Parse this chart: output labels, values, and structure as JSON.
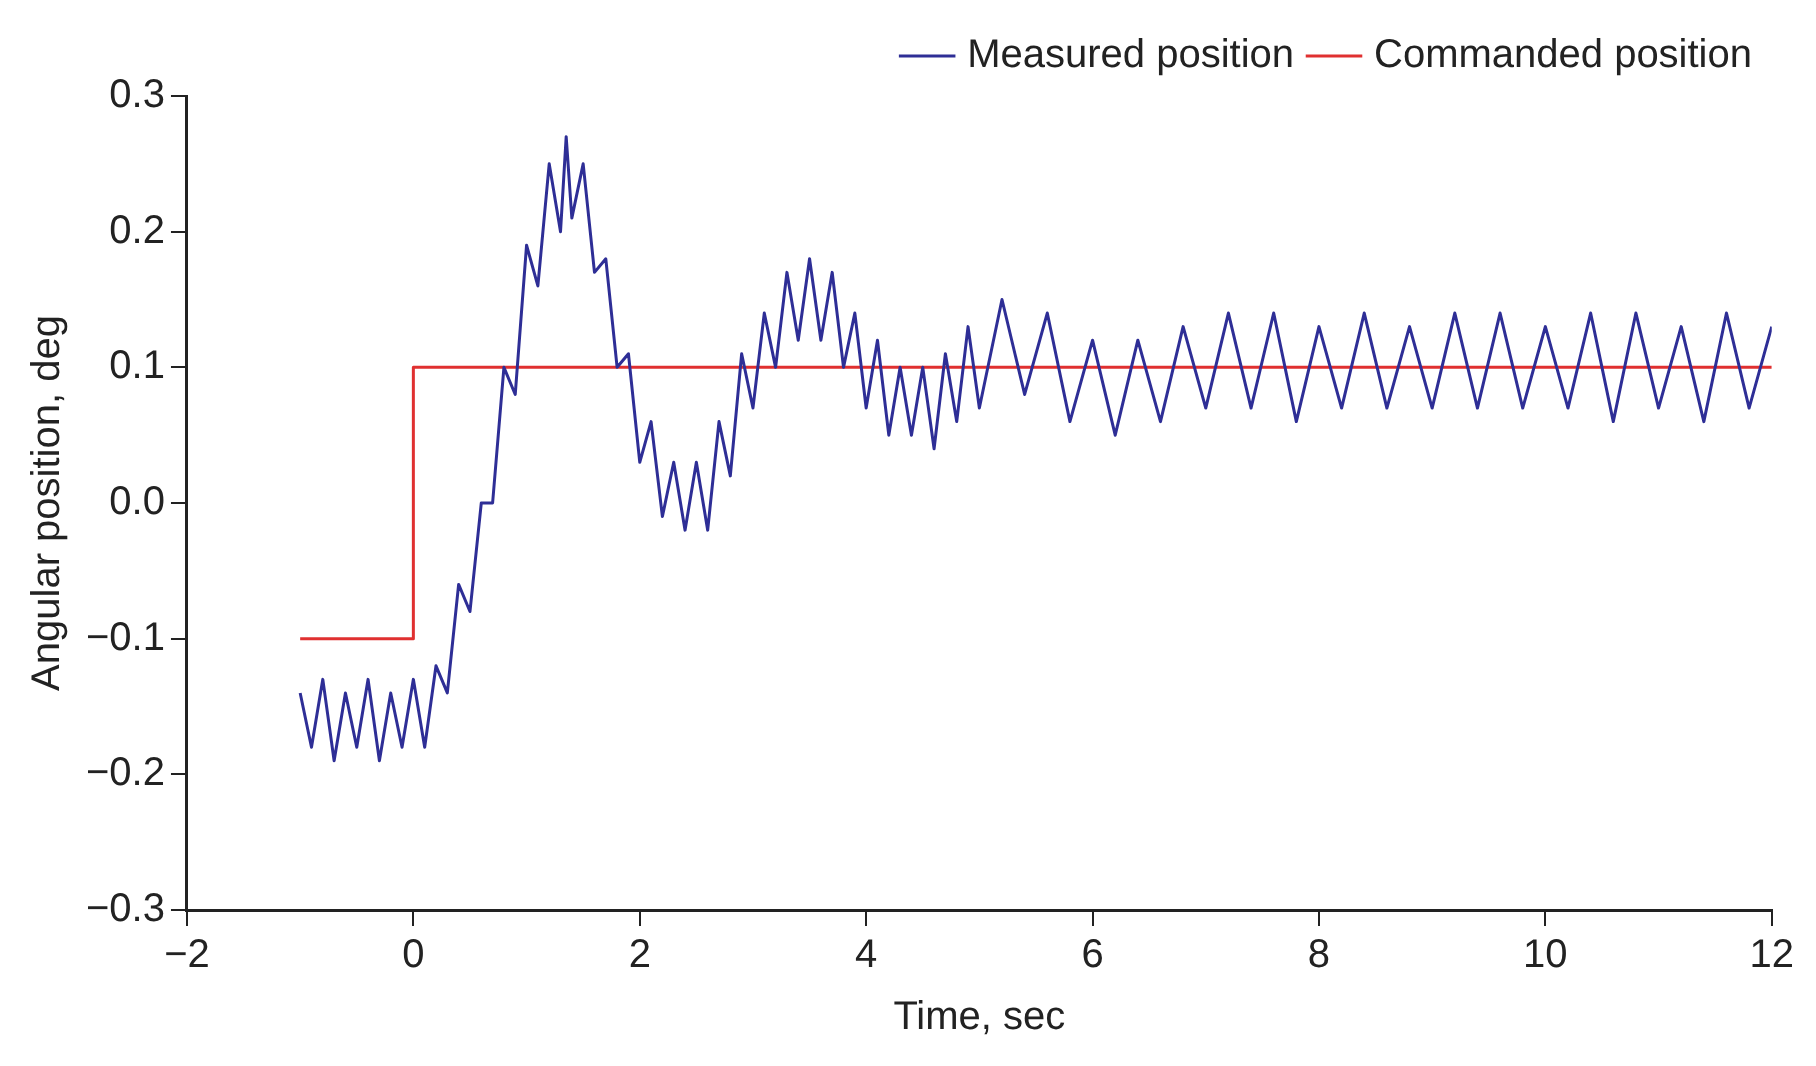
{
  "chart_data": {
    "type": "line",
    "xlabel": "Time, sec",
    "ylabel": "Angular position, deg",
    "xlim": [
      -2,
      12
    ],
    "xticks": [
      {
        "value": -2,
        "label": "−2"
      },
      0,
      2,
      4,
      6,
      8,
      10,
      12
    ],
    "ylim": [
      -0.3,
      0.3
    ],
    "yticks": [
      {
        "value": -0.3,
        "label": "−0.3"
      },
      {
        "value": -0.2,
        "label": "−0.2"
      },
      {
        "value": -0.1,
        "label": "−0.1"
      },
      {
        "value": 0,
        "label": "0.0"
      },
      {
        "value": 0.1,
        "label": "0.1"
      },
      {
        "value": 0.2,
        "label": "0.2"
      },
      {
        "value": 0.3,
        "label": "0.3"
      }
    ],
    "grid": false,
    "legend": "top right",
    "marker": "none",
    "line_style": "solid",
    "series": [
      {
        "name": "Measured position",
        "color": "#2e2e96",
        "x": [
          -1.0,
          -0.9,
          -0.8,
          -0.7,
          -0.6,
          -0.5,
          -0.4,
          -0.3,
          -0.2,
          -0.1,
          0.0,
          0.1,
          0.2,
          0.3,
          0.4,
          0.5,
          0.6,
          0.7,
          0.8,
          0.9,
          1.0,
          1.1,
          1.2,
          1.3,
          1.35,
          1.4,
          1.5,
          1.6,
          1.7,
          1.8,
          1.9,
          2.0,
          2.1,
          2.2,
          2.3,
          2.4,
          2.5,
          2.6,
          2.7,
          2.8,
          2.9,
          3.0,
          3.1,
          3.2,
          3.3,
          3.4,
          3.5,
          3.6,
          3.7,
          3.8,
          3.9,
          4.0,
          4.1,
          4.2,
          4.3,
          4.4,
          4.5,
          4.6,
          4.7,
          4.8,
          4.9,
          5.0,
          5.2,
          5.4,
          5.6,
          5.8,
          6.0,
          6.2,
          6.4,
          6.6,
          6.8,
          7.0,
          7.2,
          7.4,
          7.6,
          7.8,
          8.0,
          8.2,
          8.4,
          8.6,
          8.8,
          9.0,
          9.2,
          9.4,
          9.6,
          9.8,
          10.0,
          10.2,
          10.4,
          10.6,
          10.8,
          11.0,
          11.2,
          11.4,
          11.6,
          11.8,
          12.0
        ],
        "values": [
          -0.14,
          -0.18,
          -0.13,
          -0.19,
          -0.14,
          -0.18,
          -0.13,
          -0.19,
          -0.14,
          -0.18,
          -0.13,
          -0.18,
          -0.12,
          -0.14,
          -0.06,
          -0.08,
          0.0,
          0.0,
          0.1,
          0.08,
          0.19,
          0.16,
          0.25,
          0.2,
          0.27,
          0.21,
          0.25,
          0.17,
          0.18,
          0.1,
          0.11,
          0.03,
          0.06,
          -0.01,
          0.03,
          -0.02,
          0.03,
          -0.02,
          0.06,
          0.02,
          0.11,
          0.07,
          0.14,
          0.1,
          0.17,
          0.12,
          0.18,
          0.12,
          0.17,
          0.1,
          0.14,
          0.07,
          0.12,
          0.05,
          0.1,
          0.05,
          0.1,
          0.04,
          0.11,
          0.06,
          0.13,
          0.07,
          0.15,
          0.08,
          0.14,
          0.06,
          0.12,
          0.05,
          0.12,
          0.06,
          0.13,
          0.07,
          0.14,
          0.07,
          0.14,
          0.06,
          0.13,
          0.07,
          0.14,
          0.07,
          0.13,
          0.07,
          0.14,
          0.07,
          0.14,
          0.07,
          0.13,
          0.07,
          0.14,
          0.06,
          0.14,
          0.07,
          0.13,
          0.06,
          0.14,
          0.07,
          0.13
        ]
      },
      {
        "name": "Commanded position",
        "color": "#e03030",
        "x": [
          -1,
          0,
          0,
          12
        ],
        "values": [
          -0.1,
          -0.1,
          0.1,
          0.1
        ]
      }
    ]
  }
}
